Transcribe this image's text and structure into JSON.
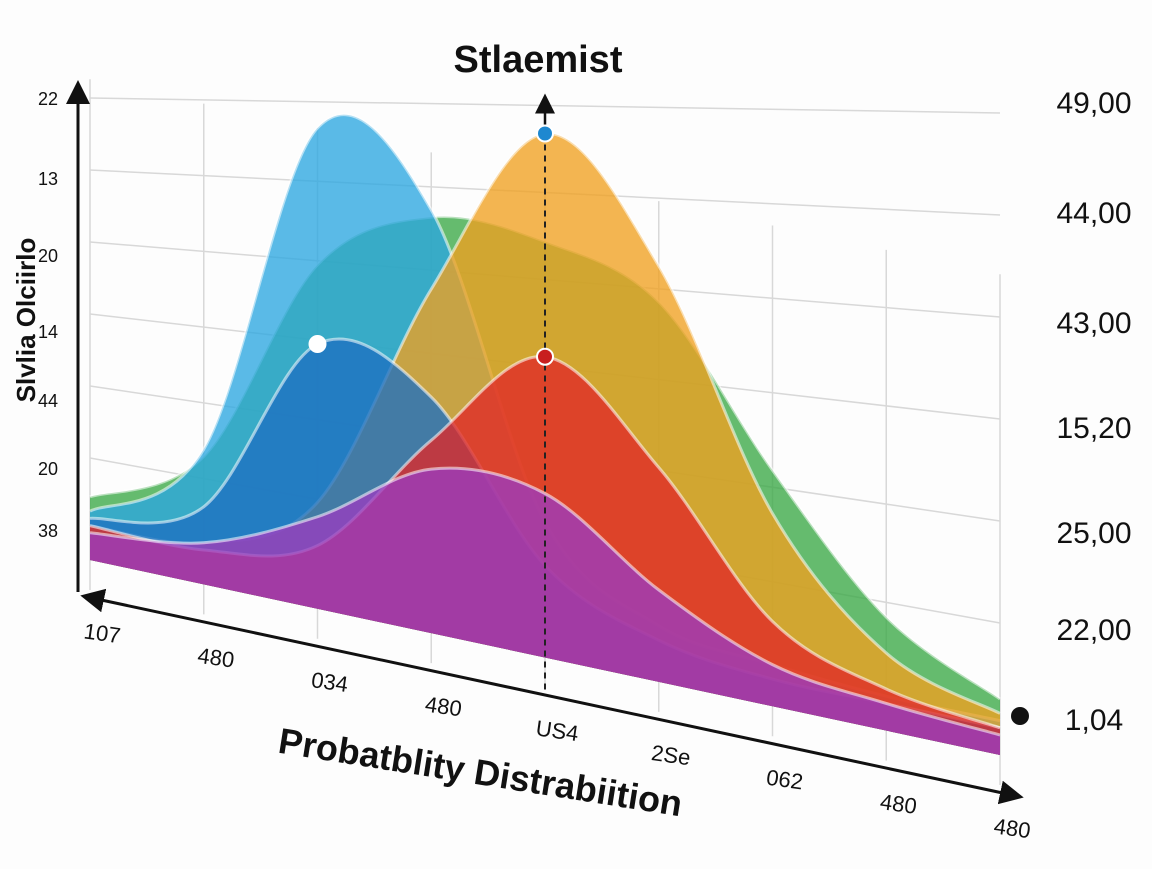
{
  "chart_data": {
    "type": "area",
    "title": "Stlaemist",
    "y_label": "Slvlia Olciirlo",
    "x_label": "Probatblity Distrabiition",
    "categories": [
      "107",
      "480",
      "034",
      "480",
      "US4",
      "2Se",
      "062",
      "480",
      "480"
    ],
    "ycategories": [
      "38",
      "20",
      "44",
      "14",
      "20",
      "13",
      "22"
    ],
    "y2categories": [
      "1,04",
      "22,00",
      "25,00",
      "15,20",
      "43,00",
      "44,00",
      "49,00"
    ],
    "ylim": [
      0,
      7.4
    ],
    "grid": true,
    "series": [
      {
        "name": "green",
        "color": "#3aa845",
        "values": [
          0.6,
          1.5,
          4.5,
          5.5,
          5.5,
          5.0,
          3.0,
          1.3,
          0.5
        ]
      },
      {
        "name": "blue",
        "color": "#2ba6e0",
        "values": [
          0.4,
          1.6,
          6.4,
          5.6,
          1.6,
          0.5,
          0.3,
          0.2,
          0.2
        ]
      },
      {
        "name": "orange",
        "color": "#f0a020",
        "values": [
          0.2,
          0.3,
          1.2,
          4.5,
          7.0,
          5.5,
          2.4,
          0.8,
          0.3
        ]
      },
      {
        "name": "darkblue",
        "color": "#1e6fc0",
        "values": [
          0.3,
          0.8,
          3.4,
          3.0,
          1.0,
          0.3,
          0.1,
          0.1,
          0.1
        ]
      },
      {
        "name": "red",
        "color": "#e02828",
        "values": [
          0.2,
          0.2,
          0.6,
          2.4,
          3.9,
          2.7,
          0.9,
          0.3,
          0.1
        ]
      },
      {
        "name": "purple",
        "color": "#9a3cc0",
        "values": [
          0.1,
          0.3,
          1.0,
          2.0,
          2.0,
          1.0,
          0.3,
          0.1,
          0.0
        ]
      }
    ]
  }
}
